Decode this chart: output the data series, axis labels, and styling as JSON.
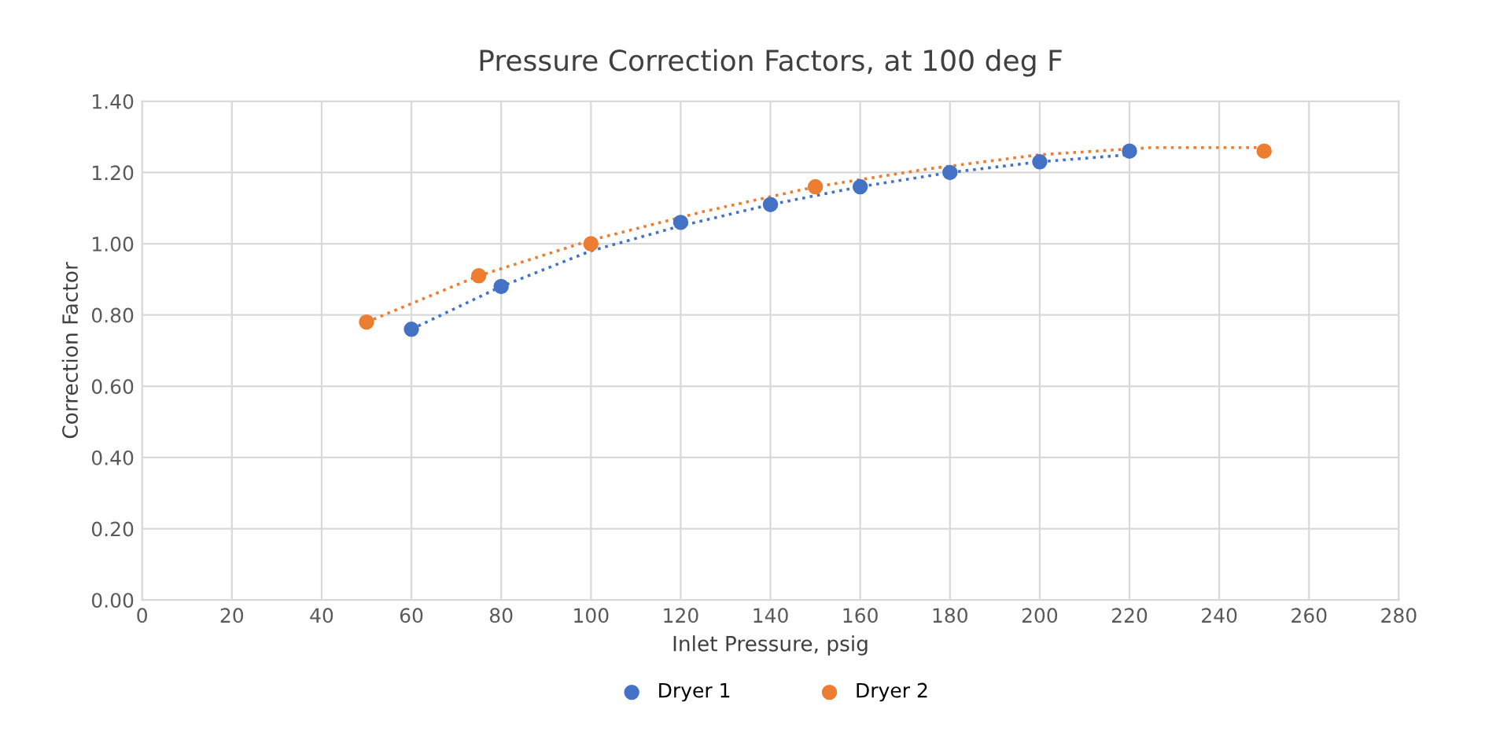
{
  "chart_data": {
    "type": "scatter",
    "title": "Pressure Correction Factors, at 100 deg F",
    "xlabel": "Inlet Pressure, psig",
    "ylabel": "Correction Factor",
    "series": [
      {
        "name": "Dryer 1",
        "color": "#4472c4",
        "x": [
          60,
          80,
          120,
          140,
          160,
          180,
          200,
          220
        ],
        "values": [
          0.76,
          0.88,
          1.06,
          1.11,
          1.16,
          1.2,
          1.23,
          1.26
        ]
      },
      {
        "name": "Dryer 2",
        "color": "#ed7d31",
        "x": [
          50,
          75,
          100,
          150,
          250
        ],
        "values": [
          0.78,
          0.91,
          1.0,
          1.16,
          1.26
        ]
      },
      {
        "type": "line",
        "color": "#4472c4",
        "line_style": "dotted",
        "marker": "none",
        "x": [
          60,
          80,
          100,
          120,
          140,
          160,
          180,
          200,
          220
        ],
        "values": [
          0.76,
          0.88,
          0.98,
          1.05,
          1.11,
          1.16,
          1.2,
          1.23,
          1.25
        ]
      },
      {
        "type": "line",
        "color": "#ed7d31",
        "line_style": "dotted",
        "marker": "none",
        "x": [
          50,
          75,
          100,
          125,
          150,
          175,
          200,
          225,
          250
        ],
        "values": [
          0.78,
          0.91,
          1.01,
          1.09,
          1.16,
          1.21,
          1.25,
          1.27,
          1.27
        ]
      }
    ],
    "xlim": [
      0,
      280
    ],
    "xticks": [
      0,
      20,
      40,
      60,
      80,
      100,
      120,
      140,
      160,
      180,
      200,
      220,
      240,
      260,
      280
    ],
    "ylim": [
      0,
      1.4
    ],
    "yticks": [
      {
        "value": 0,
        "label": "0.00"
      },
      {
        "value": 0.2,
        "label": "0.20"
      },
      {
        "value": 0.4,
        "label": "0.40"
      },
      {
        "value": 0.6,
        "label": "0.60"
      },
      {
        "value": 0.8,
        "label": "0.80"
      },
      {
        "value": 1.0,
        "label": "1.00"
      },
      {
        "value": 1.2,
        "label": "1.20"
      },
      {
        "value": 1.4,
        "label": "1.40"
      }
    ],
    "grid": true,
    "legend": "bottom",
    "marker": "circle"
  }
}
